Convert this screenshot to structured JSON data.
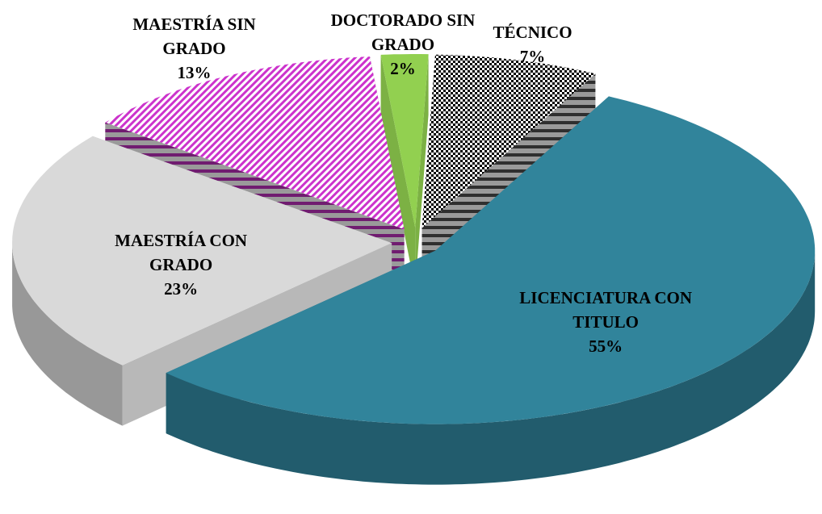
{
  "chart_data": {
    "type": "pie3d",
    "categories": [
      "TÉCNICO",
      "LICENCIATURA CON TITULO",
      "MAESTRÍA CON GRADO",
      "MAESTRÍA SIN GRADO",
      "DOCTORADO SIN GRADO"
    ],
    "values": [
      7,
      55,
      23,
      13,
      2
    ],
    "value_labels": [
      "7%",
      "55%",
      "23%",
      "13%",
      "2%"
    ],
    "colors": [
      "#000000",
      "#31849b",
      "#d9d9d9",
      "#cc33cc",
      "#92d050"
    ],
    "patterns": [
      "checker",
      "solid",
      "solid",
      "diagonal",
      "solid"
    ]
  }
}
